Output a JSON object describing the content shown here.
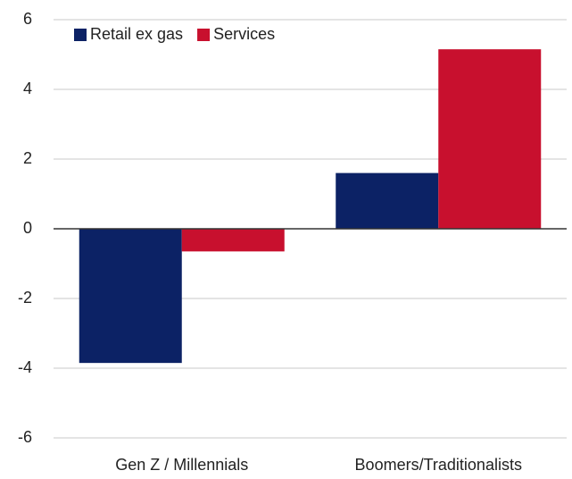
{
  "chart_data": {
    "type": "bar",
    "categories": [
      "Gen Z / Millennials",
      "Boomers/Traditionalists"
    ],
    "series": [
      {
        "name": "Retail ex gas",
        "color": "#0c2265",
        "values": [
          -3.85,
          1.6
        ]
      },
      {
        "name": "Services",
        "color": "#c8102e",
        "values": [
          -0.65,
          5.15
        ]
      }
    ],
    "ylim": [
      -6,
      6
    ],
    "yticks": [
      -6,
      -4,
      -2,
      0,
      2,
      4,
      6
    ],
    "grid": true,
    "legend": "upper-left"
  }
}
